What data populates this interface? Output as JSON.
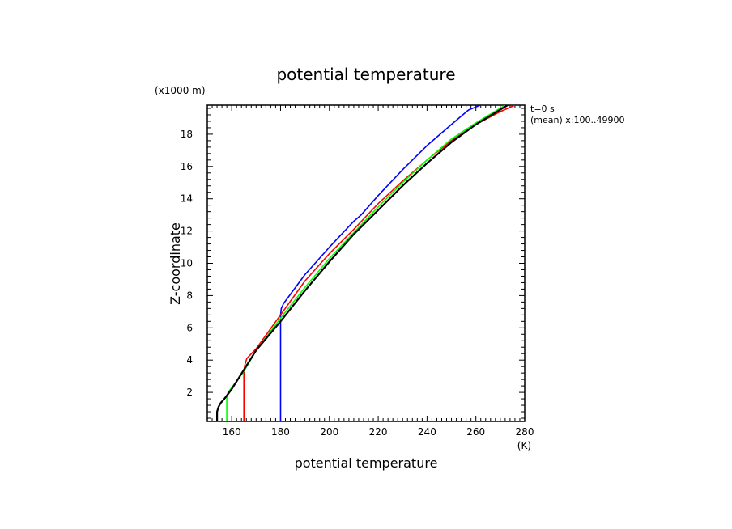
{
  "chart_data": {
    "type": "line",
    "title": "potential temperature",
    "xlabel": "potential temperature",
    "xunit": "(K)",
    "ylabel": "Z-coordinate",
    "yunit": "(x1000 m)",
    "annotations": [
      "t=0 s",
      "(mean) x:100..49900"
    ],
    "xlim": [
      150,
      280
    ],
    "ylim": [
      0.2,
      19.8
    ],
    "xticks": [
      "160",
      "180",
      "200",
      "220",
      "240",
      "260",
      "280"
    ],
    "yticks": [
      "2",
      "4",
      "6",
      "8",
      "10",
      "12",
      "14",
      "16",
      "18"
    ],
    "grid": false,
    "series": [
      {
        "color": "#0000ff",
        "x": [
          180,
          180,
          180.3,
          181.2,
          190,
          200,
          210,
          213,
          220,
          230,
          240,
          250,
          257,
          265
        ],
        "y": [
          0.2,
          6.8,
          7.2,
          7.5,
          9.3,
          11.0,
          12.6,
          13.0,
          14.2,
          15.8,
          17.3,
          18.6,
          19.5,
          20.0
        ]
      },
      {
        "color": "#ff0000",
        "x": [
          165,
          165,
          165.4,
          166.2,
          170,
          180,
          190,
          200,
          210,
          220,
          230,
          240,
          250,
          260,
          270,
          276
        ],
        "y": [
          0.2,
          3.3,
          3.7,
          4.1,
          4.7,
          6.8,
          8.9,
          10.6,
          12.1,
          13.7,
          15.1,
          16.4,
          17.6,
          18.6,
          19.4,
          19.8
        ]
      },
      {
        "color": "#00ff00",
        "x": [
          158,
          158,
          158.5,
          160,
          165,
          170,
          180,
          190,
          200,
          210,
          220,
          230,
          240,
          250,
          260,
          272
        ],
        "y": [
          0.2,
          1.7,
          2.0,
          2.3,
          3.3,
          4.6,
          6.6,
          8.5,
          10.3,
          11.9,
          13.5,
          15.0,
          16.4,
          17.7,
          18.7,
          19.8
        ]
      },
      {
        "color": "#000000",
        "x": [
          154,
          154,
          154.6,
          155.5,
          157,
          160,
          165,
          170,
          180,
          190,
          200,
          210,
          220,
          230,
          240,
          250,
          260,
          273
        ],
        "y": [
          0.2,
          0.8,
          1.1,
          1.35,
          1.6,
          2.2,
          3.4,
          4.6,
          6.4,
          8.3,
          10.1,
          11.8,
          13.3,
          14.8,
          16.2,
          17.5,
          18.6,
          19.8
        ]
      }
    ]
  }
}
